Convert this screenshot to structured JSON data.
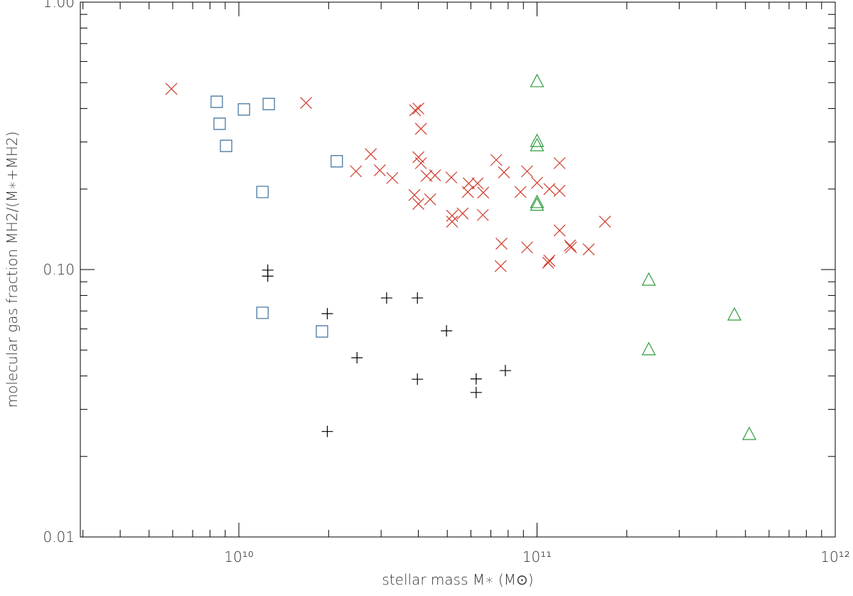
{
  "chart_data": {
    "type": "scatter",
    "xlabel": "stellar mass M∗ (M⊙)",
    "ylabel": "molecular gas fraction MH2/(M∗+MH2)",
    "xscale": "log",
    "yscale": "log",
    "xlim": [
      2940000000.0,
      1000000000000.0
    ],
    "ylim": [
      0.01,
      1
    ],
    "xticks": [
      {
        "value": 10000000000.0,
        "label": "10¹⁰"
      },
      {
        "value": 100000000000.0,
        "label": "10¹¹"
      },
      {
        "value": 1000000000000.0,
        "label": "10¹²"
      }
    ],
    "yticks": [
      {
        "value": 0.01,
        "label": "0.01"
      },
      {
        "value": 0.1,
        "label": "0.10"
      },
      {
        "value": 1,
        "label": "1.00"
      }
    ],
    "series": [
      {
        "marker": "x",
        "color": "#d03a2a",
        "x": [
          5940000000.0,
          16800000000.0,
          39000000000.0,
          40000000000.0,
          40800000000.0,
          27700000000.0,
          24700000000.0,
          29700000000.0,
          32700000000.0,
          40000000000.0,
          40800000000.0,
          42600000000.0,
          45500000000.0,
          51600000000.0,
          38800000000.0,
          40000000000.0,
          43800000000.0,
          51900000000.0,
          51900000000.0,
          56300000000.0,
          59000000000.0,
          63200000000.0,
          58600000000.0,
          66000000000.0,
          65800000000.0,
          73000000000.0,
          77500000000.0,
          76000000000.0,
          75500000000.0,
          88000000000.0,
          92600000000.0,
          92600000000.0,
          100000000000.0,
          110000000000.0,
          119000000000.0,
          119000000000.0,
          119000000000.0,
          110000000000.0,
          109000000000.0,
          129000000000.0,
          130000000000.0,
          149000000000.0,
          169000000000.0
        ],
        "values": [
          0.474,
          0.42,
          0.394,
          0.4,
          0.336,
          0.27,
          0.233,
          0.235,
          0.22,
          0.263,
          0.25,
          0.224,
          0.225,
          0.221,
          0.19,
          0.176,
          0.183,
          0.159,
          0.151,
          0.162,
          0.21,
          0.21,
          0.195,
          0.194,
          0.16,
          0.257,
          0.231,
          0.125,
          0.103,
          0.195,
          0.233,
          0.121,
          0.211,
          0.2,
          0.197,
          0.25,
          0.14,
          0.108,
          0.106,
          0.123,
          0.121,
          0.119,
          0.151
        ]
      },
      {
        "marker": "square",
        "color": "#3a6e9a",
        "x": [
          8430000000.0,
          8620000000.0,
          9060000000.0,
          10400000000.0,
          12600000000.0,
          21300000000.0,
          12000000000.0,
          12000000000.0,
          19000000000.0
        ],
        "values": [
          0.424,
          0.351,
          0.29,
          0.397,
          0.416,
          0.254,
          0.195,
          0.0689,
          0.0587
        ]
      },
      {
        "marker": "plus",
        "color": "#000000",
        "x": [
          12500000000.0,
          12500000000.0,
          19800000000.0,
          24900000000.0,
          31300000000.0,
          39700000000.0,
          49700000000.0,
          39700000000.0,
          62500000000.0,
          62500000000.0,
          78300000000.0,
          19800000000.0
        ],
        "values": [
          0.0995,
          0.0945,
          0.0684,
          0.0468,
          0.0783,
          0.0783,
          0.059,
          0.0389,
          0.039,
          0.0347,
          0.0419,
          0.0248
        ]
      },
      {
        "marker": "triangle",
        "color": "#2e9a3a",
        "x": [
          100000000000.0,
          100000000000.0,
          100000000000.0,
          100000000000.0,
          100000000000.0,
          237000000000.0,
          237000000000.0,
          459000000000.0,
          515000000000.0
        ],
        "values": [
          0.507,
          0.303,
          0.292,
          0.179,
          0.175,
          0.0918,
          0.0504,
          0.068,
          0.0243
        ]
      }
    ]
  }
}
